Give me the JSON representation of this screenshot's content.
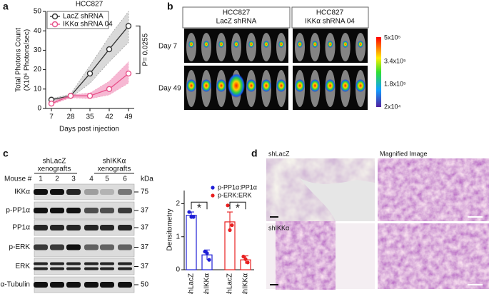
{
  "figure": {
    "panel_labels": [
      "a",
      "b",
      "c",
      "d"
    ],
    "imaging": {
      "headers": [
        [
          "HCC827",
          "LacZ shRNA"
        ],
        [
          "HCC827",
          "IKKα shRNA 04"
        ]
      ],
      "rows": [
        "Day 7",
        "Day 49"
      ],
      "colorbar_labels": [
        "5x10⁵",
        "3.4x10⁵",
        "1.8x10⁵",
        "2x10⁴"
      ]
    },
    "blot": {
      "groups": [
        [
          "shLacZ",
          "xenografts"
        ],
        [
          "shIKKα",
          "xenografts"
        ]
      ],
      "mouse_label": "Mouse #",
      "lanes": [
        "1",
        "2",
        "3",
        "4",
        "5",
        "6"
      ],
      "kda_label": "kDa",
      "rows": [
        {
          "label": "IKKα",
          "marker": "75"
        },
        {
          "label": "p-PP1α",
          "marker": "37"
        },
        {
          "label": "PP1α",
          "marker": "37"
        },
        {
          "label": "p-ERK",
          "marker": "37"
        },
        {
          "label": "ERK",
          "marker": "37"
        },
        {
          "label": "α-Tubulin",
          "marker": "50"
        }
      ]
    },
    "histology": {
      "row_labels": [
        "shLacZ",
        "shIKKα"
      ],
      "column_label": "Magnified Image"
    }
  },
  "chart_data": [
    {
      "type": "line",
      "title": "HCC827",
      "x_label": "Days post injection",
      "y_label": [
        "Total Photons Count",
        "(X10⁶ Photons/sec)"
      ],
      "categories": [
        "7",
        "28",
        "35",
        "42",
        "49"
      ],
      "ylim": [
        0,
        50
      ],
      "yticks": [
        0,
        10,
        20,
        30,
        40,
        50
      ],
      "series": [
        {
          "name": "LacZ shRNA",
          "color": "#333333",
          "band_color": "#bbbbbb",
          "values": [
            4.5,
            6.5,
            18,
            30.5,
            42.5
          ],
          "lower": [
            4,
            5.5,
            13,
            24,
            34
          ],
          "upper": [
            5,
            7.5,
            22,
            37,
            50
          ]
        },
        {
          "name": "IKKα shRNA 04",
          "color": "#e8518a",
          "band_color": "#f07fb0",
          "values": [
            2.5,
            6.5,
            6.5,
            10,
            18
          ],
          "lower": [
            2,
            5.5,
            5,
            7,
            13
          ],
          "upper": [
            3.5,
            7,
            8,
            14,
            24
          ]
        }
      ],
      "annotation": "P= 0.0255"
    },
    {
      "type": "bar",
      "y_label": "Densitometry",
      "ylim": [
        0,
        2.4
      ],
      "yticks": [
        0,
        1,
        2
      ],
      "series": [
        {
          "name": "p-PP1α:PP1α",
          "color": "#1f1fd6",
          "categories": [
            "shLacZ",
            "shIKKα"
          ],
          "values": [
            1.65,
            0.45
          ],
          "errors": [
            0.1,
            0.15
          ],
          "points": [
            [
              1.75,
              1.6,
              1.6
            ],
            [
              0.55,
              0.3,
              0.5
            ]
          ],
          "annotation": "*"
        },
        {
          "name": "p-ERK:ERK",
          "color": "#e82020",
          "categories": [
            "shLacZ",
            "shIKKα"
          ],
          "values": [
            1.45,
            0.3
          ],
          "errors": [
            0.3,
            0.12
          ],
          "points": [
            [
              1.95,
              1.35,
              1.2
            ],
            [
              0.4,
              0.22,
              0.32
            ]
          ],
          "annotation": "*"
        }
      ]
    }
  ]
}
